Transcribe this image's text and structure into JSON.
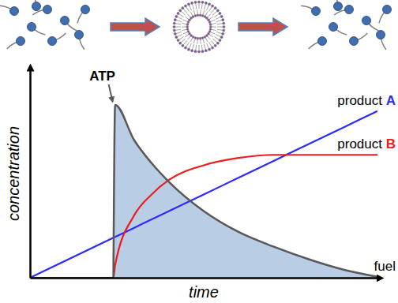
{
  "chart_data": {
    "type": "line",
    "x_label": "time",
    "y_label": "concentration",
    "x": [
      0,
      2.4,
      2.45,
      3,
      3.5,
      4,
      5,
      6,
      7,
      8,
      9,
      10
    ],
    "xlim": [
      0,
      10
    ],
    "ylim": [
      0,
      10
    ],
    "tick_labels": false,
    "series": [
      {
        "name": "product A",
        "color": "#2b2bff",
        "values": [
          0,
          1.92,
          1.96,
          2.4,
          2.8,
          3.2,
          4.0,
          4.8,
          5.6,
          6.4,
          7.2,
          8.0
        ]
      },
      {
        "name": "product B",
        "color": "#ee1c1c",
        "values": [
          0,
          0,
          0.6,
          3.0,
          4.0,
          4.7,
          5.4,
          5.75,
          5.9,
          5.9,
          5.9,
          5.9
        ]
      },
      {
        "name": "fuel",
        "color": "#595959",
        "type": "area",
        "values": [
          null,
          0,
          8.3,
          6.6,
          5.5,
          4.6,
          3.2,
          2.2,
          1.5,
          0.9,
          0.4,
          0.05
        ]
      }
    ],
    "annotations": [
      {
        "text": "ATP",
        "x": 2.4,
        "y": 8.3
      }
    ]
  }
}
